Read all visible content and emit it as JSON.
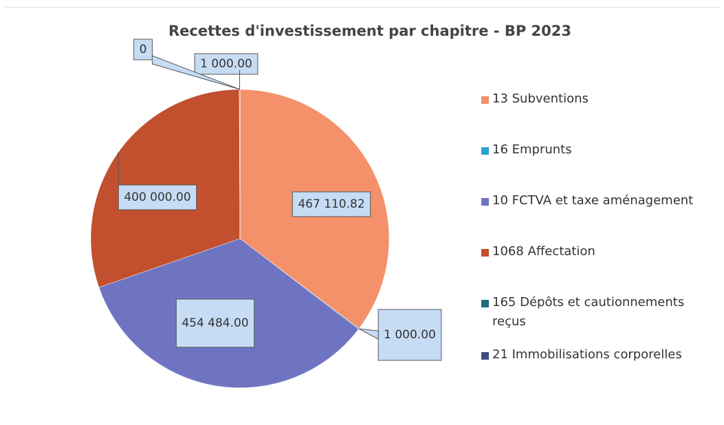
{
  "chart_data": {
    "type": "pie",
    "title": "Recettes d'investissement par chapitre - BP 2023",
    "categories": [
      "13 Subventions",
      "16 Emprunts",
      "10 FCTVA et taxe aménagement",
      "1068 Affectation",
      "165 Dépôts et cautionnements reçus",
      "21 Immobilisations corporelles"
    ],
    "values": [
      467110.82,
      1000,
      454484,
      400000,
      1000,
      0
    ],
    "value_labels": [
      "467 110.82",
      "1 000.00",
      "454 484.00",
      "400 000.00",
      "1 000.00",
      "0"
    ],
    "colors": [
      "#f4916a",
      "#2aa3d4",
      "#6f74c2",
      "#c2502f",
      "#1f6b78",
      "#3f4c82"
    ],
    "legend": "right"
  }
}
